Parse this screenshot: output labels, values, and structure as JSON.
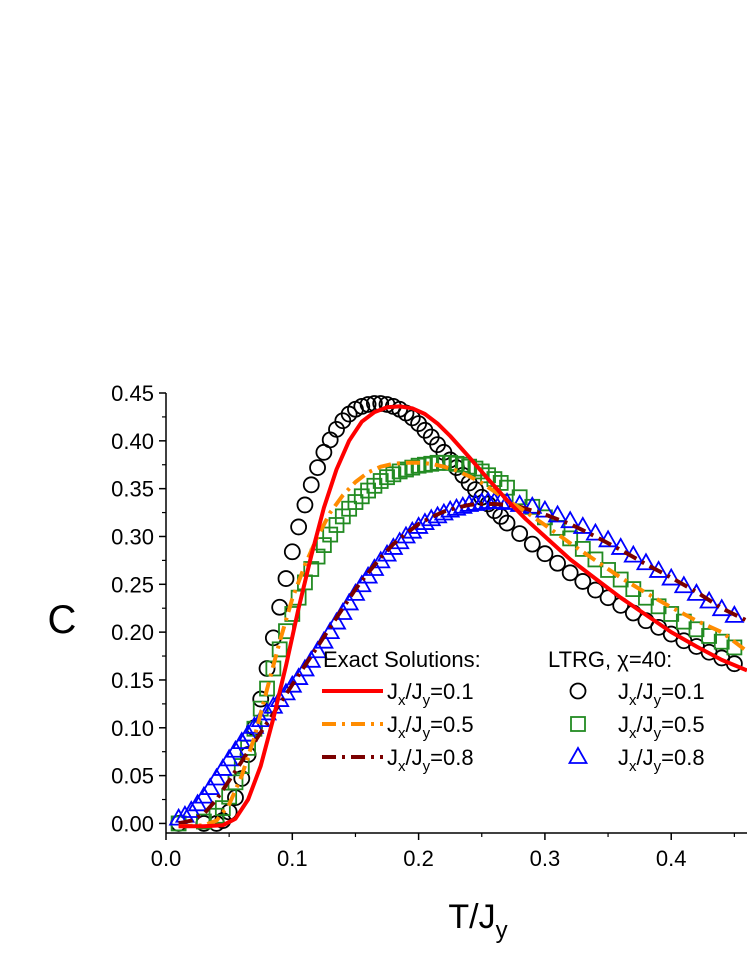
{
  "chart_data": {
    "type": "line",
    "xlabel": "T/J",
    "xlabel_sub": "y",
    "ylabel": "C",
    "xlim": [
      0.0,
      0.46
    ],
    "ylim": [
      -0.01,
      0.45
    ],
    "x_ticks": [
      {
        "value": 0.0,
        "label": "0.0"
      },
      {
        "value": 0.1,
        "label": "0.1"
      },
      {
        "value": 0.2,
        "label": "0.2"
      },
      {
        "value": 0.3,
        "label": "0.3"
      },
      {
        "value": 0.4,
        "label": "0.4"
      }
    ],
    "y_ticks": [
      {
        "value": 0.0,
        "label": "0.00"
      },
      {
        "value": 0.05,
        "label": "0.05"
      },
      {
        "value": 0.1,
        "label": "0.10"
      },
      {
        "value": 0.15,
        "label": "0.15"
      },
      {
        "value": 0.2,
        "label": "0.20"
      },
      {
        "value": 0.25,
        "label": "0.25"
      },
      {
        "value": 0.3,
        "label": "0.30"
      },
      {
        "value": 0.35,
        "label": "0.35"
      },
      {
        "value": 0.4,
        "label": "0.40"
      },
      {
        "value": 0.45,
        "label": "0.45"
      }
    ],
    "legend": {
      "placement": "bottom-right",
      "exact_title": "Exact Solutions:",
      "ltrg_title": "LTRG, χ=40:"
    },
    "line_series": [
      {
        "name": "Jx/Jy=0.1",
        "label_parts": [
          "J",
          "x",
          "/J",
          "y",
          "=0.1"
        ],
        "color": "#ff0000",
        "style": "solid",
        "width": 4,
        "x": [
          0.01,
          0.03,
          0.045,
          0.055,
          0.065,
          0.075,
          0.085,
          0.095,
          0.105,
          0.115,
          0.125,
          0.135,
          0.145,
          0.155,
          0.165,
          0.175,
          0.185,
          0.195,
          0.205,
          0.215,
          0.225,
          0.24,
          0.255,
          0.27,
          0.285,
          0.3,
          0.32,
          0.34,
          0.36,
          0.38,
          0.4,
          0.42,
          0.44,
          0.46
        ],
        "y": [
          -0.003,
          -0.003,
          -0.002,
          0.005,
          0.025,
          0.06,
          0.11,
          0.165,
          0.225,
          0.28,
          0.33,
          0.37,
          0.4,
          0.42,
          0.43,
          0.435,
          0.436,
          0.434,
          0.428,
          0.418,
          0.405,
          0.383,
          0.36,
          0.338,
          0.318,
          0.3,
          0.276,
          0.256,
          0.236,
          0.218,
          0.2,
          0.185,
          0.171,
          0.16
        ]
      },
      {
        "name": "Jx/Jy=0.5",
        "label_parts": [
          "J",
          "x",
          "/J",
          "y",
          "=0.5"
        ],
        "color": "#ff8c00",
        "style": "dash-dot",
        "width": 4,
        "x": [
          0.01,
          0.03,
          0.04,
          0.05,
          0.06,
          0.07,
          0.08,
          0.09,
          0.1,
          0.11,
          0.12,
          0.13,
          0.14,
          0.15,
          0.16,
          0.17,
          0.18,
          0.19,
          0.2,
          0.21,
          0.22,
          0.23,
          0.24,
          0.25,
          0.26,
          0.27,
          0.28,
          0.3,
          0.32,
          0.34,
          0.36,
          0.38,
          0.4,
          0.42,
          0.44,
          0.46
        ],
        "y": [
          -0.003,
          -0.002,
          0.003,
          0.02,
          0.05,
          0.09,
          0.14,
          0.19,
          0.235,
          0.27,
          0.3,
          0.325,
          0.343,
          0.357,
          0.367,
          0.373,
          0.376,
          0.377,
          0.377,
          0.376,
          0.373,
          0.369,
          0.363,
          0.356,
          0.347,
          0.338,
          0.33,
          0.312,
          0.293,
          0.275,
          0.257,
          0.241,
          0.226,
          0.212,
          0.2,
          0.18
        ]
      },
      {
        "name": "Jx/Jy=0.8",
        "label_parts": [
          "J",
          "x",
          "/J",
          "y",
          "=0.8"
        ],
        "color": "#7b0000",
        "style": "dash-dot",
        "width": 4,
        "x": [
          0.01,
          0.02,
          0.03,
          0.04,
          0.05,
          0.06,
          0.07,
          0.08,
          0.09,
          0.1,
          0.11,
          0.12,
          0.13,
          0.14,
          0.15,
          0.16,
          0.17,
          0.18,
          0.19,
          0.2,
          0.21,
          0.22,
          0.23,
          0.24,
          0.25,
          0.26,
          0.27,
          0.28,
          0.29,
          0.3,
          0.32,
          0.34,
          0.36,
          0.38,
          0.4,
          0.42,
          0.44,
          0.46
        ],
        "y": [
          0.0,
          0.003,
          0.01,
          0.025,
          0.045,
          0.065,
          0.085,
          0.105,
          0.125,
          0.145,
          0.165,
          0.185,
          0.205,
          0.225,
          0.245,
          0.262,
          0.278,
          0.292,
          0.303,
          0.313,
          0.32,
          0.326,
          0.33,
          0.333,
          0.334,
          0.334,
          0.333,
          0.331,
          0.327,
          0.323,
          0.313,
          0.3,
          0.286,
          0.271,
          0.257,
          0.242,
          0.225,
          0.212
        ]
      }
    ],
    "marker_series": [
      {
        "name": "Jx/Jy=0.1",
        "label_parts": [
          "J",
          "x",
          "/J",
          "y",
          "=0.1"
        ],
        "marker": "circle",
        "color": "#000000",
        "x": [
          0.01,
          0.03,
          0.04,
          0.045,
          0.05,
          0.055,
          0.06,
          0.065,
          0.07,
          0.075,
          0.08,
          0.085,
          0.09,
          0.095,
          0.1,
          0.105,
          0.11,
          0.115,
          0.12,
          0.125,
          0.13,
          0.135,
          0.14,
          0.145,
          0.15,
          0.155,
          0.16,
          0.165,
          0.17,
          0.175,
          0.18,
          0.185,
          0.19,
          0.195,
          0.2,
          0.205,
          0.21,
          0.215,
          0.22,
          0.225,
          0.23,
          0.235,
          0.24,
          0.245,
          0.25,
          0.255,
          0.26,
          0.265,
          0.27,
          0.28,
          0.29,
          0.3,
          0.31,
          0.32,
          0.33,
          0.34,
          0.35,
          0.36,
          0.37,
          0.38,
          0.39,
          0.4,
          0.41,
          0.42,
          0.43,
          0.44,
          0.45
        ],
        "y": [
          0.0,
          0.0,
          0.0,
          0.003,
          0.012,
          0.027,
          0.047,
          0.072,
          0.1,
          0.13,
          0.162,
          0.194,
          0.226,
          0.256,
          0.284,
          0.31,
          0.333,
          0.354,
          0.372,
          0.388,
          0.401,
          0.412,
          0.421,
          0.428,
          0.433,
          0.436,
          0.438,
          0.439,
          0.439,
          0.438,
          0.436,
          0.433,
          0.429,
          0.424,
          0.418,
          0.411,
          0.404,
          0.396,
          0.388,
          0.38,
          0.372,
          0.364,
          0.356,
          0.349,
          0.341,
          0.334,
          0.327,
          0.321,
          0.314,
          0.303,
          0.292,
          0.282,
          0.272,
          0.262,
          0.253,
          0.244,
          0.236,
          0.228,
          0.22,
          0.212,
          0.205,
          0.198,
          0.191,
          0.185,
          0.179,
          0.173,
          0.167
        ]
      },
      {
        "name": "Jx/Jy=0.5",
        "label_parts": [
          "J",
          "x",
          "/J",
          "y",
          "=0.5"
        ],
        "marker": "square",
        "color": "#228b22",
        "x": [
          0.01,
          0.03,
          0.04,
          0.045,
          0.05,
          0.055,
          0.06,
          0.065,
          0.07,
          0.075,
          0.08,
          0.085,
          0.09,
          0.095,
          0.1,
          0.105,
          0.11,
          0.115,
          0.12,
          0.125,
          0.13,
          0.135,
          0.14,
          0.145,
          0.15,
          0.155,
          0.16,
          0.165,
          0.17,
          0.175,
          0.18,
          0.185,
          0.19,
          0.195,
          0.2,
          0.205,
          0.21,
          0.215,
          0.22,
          0.225,
          0.23,
          0.235,
          0.24,
          0.245,
          0.25,
          0.255,
          0.26,
          0.265,
          0.27,
          0.28,
          0.29,
          0.3,
          0.31,
          0.32,
          0.33,
          0.34,
          0.35,
          0.36,
          0.37,
          0.38,
          0.39,
          0.4,
          0.41,
          0.42,
          0.43,
          0.44,
          0.45
        ],
        "y": [
          0.0,
          0.002,
          0.008,
          0.016,
          0.028,
          0.043,
          0.06,
          0.079,
          0.099,
          0.12,
          0.141,
          0.162,
          0.182,
          0.201,
          0.219,
          0.236,
          0.252,
          0.266,
          0.279,
          0.291,
          0.302,
          0.312,
          0.321,
          0.329,
          0.336,
          0.342,
          0.348,
          0.353,
          0.358,
          0.362,
          0.365,
          0.368,
          0.37,
          0.372,
          0.374,
          0.375,
          0.376,
          0.377,
          0.377,
          0.377,
          0.376,
          0.375,
          0.373,
          0.371,
          0.368,
          0.364,
          0.36,
          0.356,
          0.351,
          0.341,
          0.331,
          0.32,
          0.309,
          0.298,
          0.287,
          0.276,
          0.265,
          0.255,
          0.245,
          0.236,
          0.227,
          0.219,
          0.211,
          0.203,
          0.196,
          0.19,
          0.184
        ]
      },
      {
        "name": "Jx/Jy=0.8",
        "label_parts": [
          "J",
          "x",
          "/J",
          "y",
          "=0.8"
        ],
        "marker": "triangle",
        "color": "#0000ff",
        "x": [
          0.01,
          0.015,
          0.02,
          0.025,
          0.03,
          0.035,
          0.04,
          0.045,
          0.05,
          0.055,
          0.06,
          0.065,
          0.07,
          0.075,
          0.08,
          0.085,
          0.09,
          0.095,
          0.1,
          0.105,
          0.11,
          0.115,
          0.12,
          0.125,
          0.13,
          0.135,
          0.14,
          0.145,
          0.15,
          0.155,
          0.16,
          0.165,
          0.17,
          0.175,
          0.18,
          0.185,
          0.19,
          0.195,
          0.2,
          0.205,
          0.21,
          0.215,
          0.22,
          0.225,
          0.23,
          0.235,
          0.24,
          0.245,
          0.25,
          0.255,
          0.26,
          0.265,
          0.27,
          0.28,
          0.29,
          0.3,
          0.31,
          0.32,
          0.33,
          0.34,
          0.35,
          0.36,
          0.37,
          0.38,
          0.39,
          0.4,
          0.41,
          0.42,
          0.43,
          0.44,
          0.45
        ],
        "y": [
          0.005,
          0.008,
          0.013,
          0.02,
          0.028,
          0.037,
          0.047,
          0.057,
          0.067,
          0.076,
          0.085,
          0.093,
          0.101,
          0.108,
          0.115,
          0.122,
          0.129,
          0.136,
          0.144,
          0.152,
          0.161,
          0.17,
          0.18,
          0.19,
          0.2,
          0.21,
          0.22,
          0.23,
          0.24,
          0.249,
          0.258,
          0.266,
          0.274,
          0.281,
          0.288,
          0.294,
          0.3,
          0.305,
          0.31,
          0.314,
          0.318,
          0.321,
          0.324,
          0.327,
          0.329,
          0.331,
          0.333,
          0.334,
          0.335,
          0.336,
          0.336,
          0.336,
          0.335,
          0.333,
          0.331,
          0.327,
          0.322,
          0.316,
          0.31,
          0.303,
          0.296,
          0.288,
          0.28,
          0.272,
          0.264,
          0.256,
          0.248,
          0.24,
          0.232,
          0.224,
          0.217
        ]
      }
    ]
  }
}
